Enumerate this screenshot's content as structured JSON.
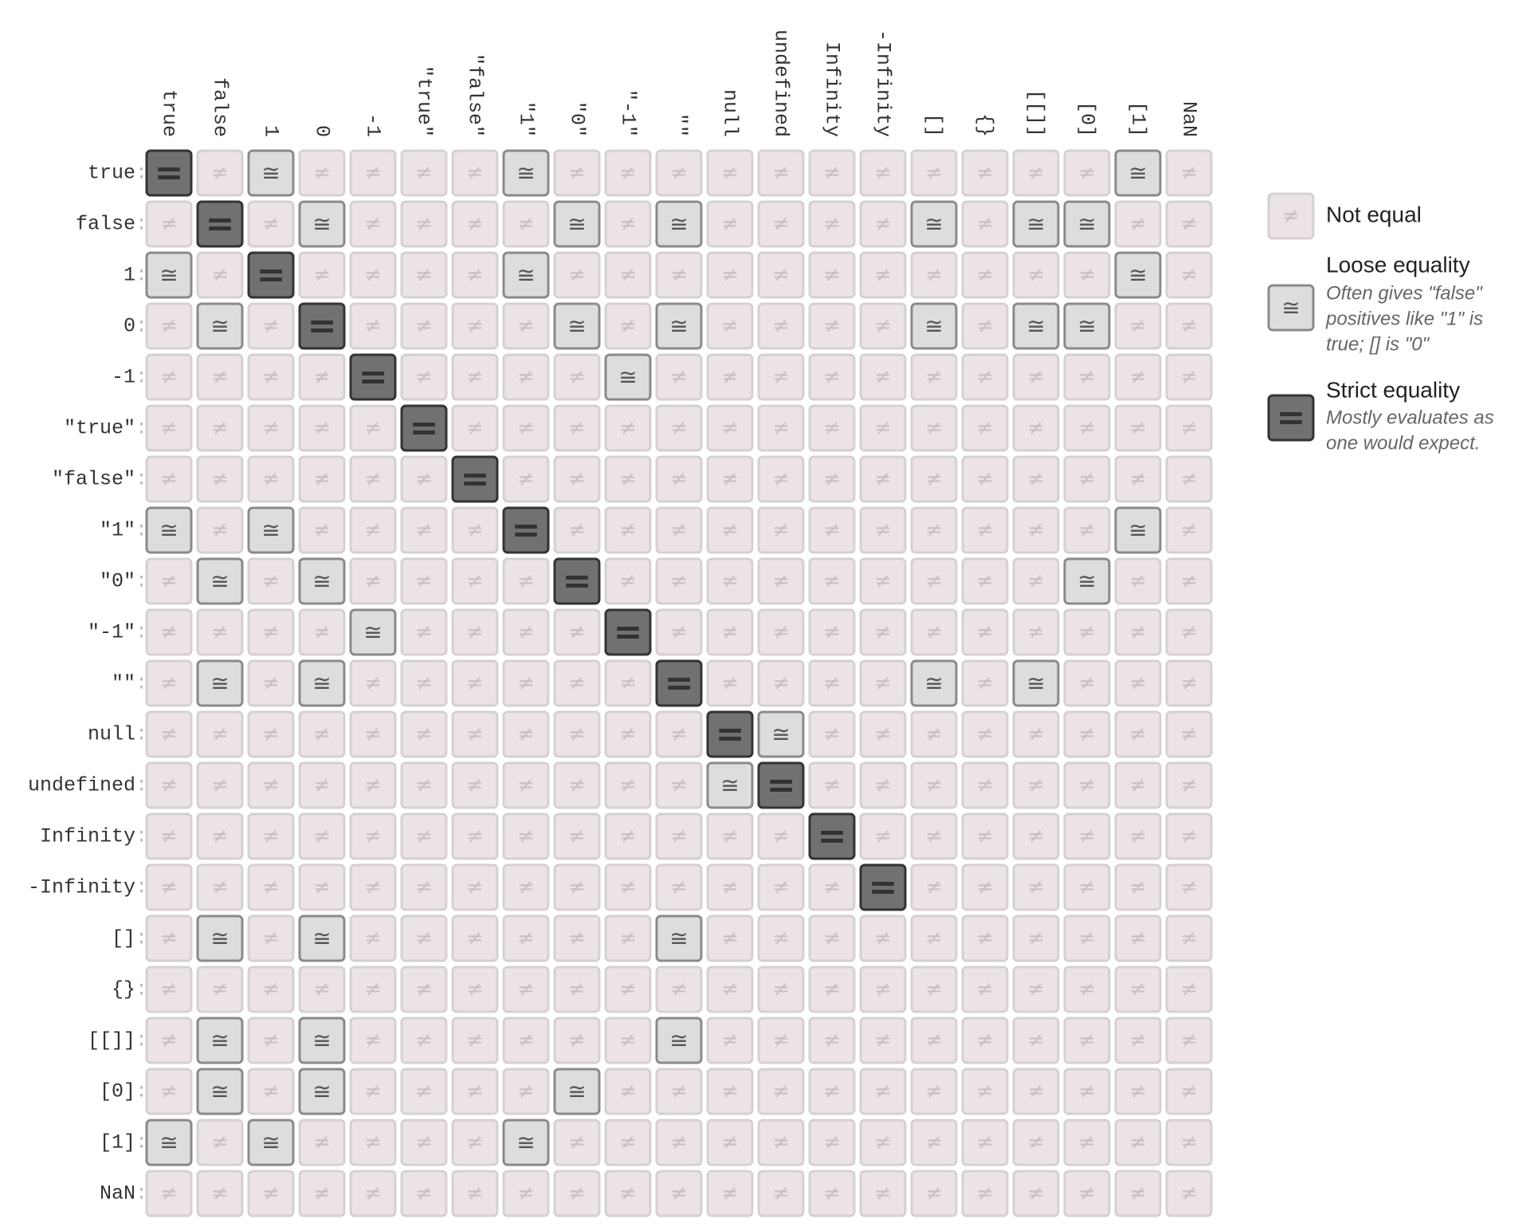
{
  "labels": [
    "true",
    "false",
    "1",
    "0",
    "-1",
    "\"true\"",
    "\"false\"",
    "\"1\"",
    "\"0\"",
    "\"-1\"",
    "\"\"",
    "null",
    "undefined",
    "Infinity",
    "-Infinity",
    "[]",
    "{}",
    "[[]]",
    "[0]",
    "[1]",
    "NaN"
  ],
  "separator": ":",
  "matrix": [
    [
      "=",
      "≠",
      "≅",
      "≠",
      "≠",
      "≠",
      "≠",
      "≅",
      "≠",
      "≠",
      "≠",
      "≠",
      "≠",
      "≠",
      "≠",
      "≠",
      "≠",
      "≠",
      "≠",
      "≅",
      "≠"
    ],
    [
      "≠",
      "=",
      "≠",
      "≅",
      "≠",
      "≠",
      "≠",
      "≠",
      "≅",
      "≠",
      "≅",
      "≠",
      "≠",
      "≠",
      "≠",
      "≅",
      "≠",
      "≅",
      "≅",
      "≠",
      "≠"
    ],
    [
      "≅",
      "≠",
      "=",
      "≠",
      "≠",
      "≠",
      "≠",
      "≅",
      "≠",
      "≠",
      "≠",
      "≠",
      "≠",
      "≠",
      "≠",
      "≠",
      "≠",
      "≠",
      "≠",
      "≅",
      "≠"
    ],
    [
      "≠",
      "≅",
      "≠",
      "=",
      "≠",
      "≠",
      "≠",
      "≠",
      "≅",
      "≠",
      "≅",
      "≠",
      "≠",
      "≠",
      "≠",
      "≅",
      "≠",
      "≅",
      "≅",
      "≠",
      "≠"
    ],
    [
      "≠",
      "≠",
      "≠",
      "≠",
      "=",
      "≠",
      "≠",
      "≠",
      "≠",
      "≅",
      "≠",
      "≠",
      "≠",
      "≠",
      "≠",
      "≠",
      "≠",
      "≠",
      "≠",
      "≠",
      "≠"
    ],
    [
      "≠",
      "≠",
      "≠",
      "≠",
      "≠",
      "=",
      "≠",
      "≠",
      "≠",
      "≠",
      "≠",
      "≠",
      "≠",
      "≠",
      "≠",
      "≠",
      "≠",
      "≠",
      "≠",
      "≠",
      "≠"
    ],
    [
      "≠",
      "≠",
      "≠",
      "≠",
      "≠",
      "≠",
      "=",
      "≠",
      "≠",
      "≠",
      "≠",
      "≠",
      "≠",
      "≠",
      "≠",
      "≠",
      "≠",
      "≠",
      "≠",
      "≠",
      "≠"
    ],
    [
      "≅",
      "≠",
      "≅",
      "≠",
      "≠",
      "≠",
      "≠",
      "=",
      "≠",
      "≠",
      "≠",
      "≠",
      "≠",
      "≠",
      "≠",
      "≠",
      "≠",
      "≠",
      "≠",
      "≅",
      "≠"
    ],
    [
      "≠",
      "≅",
      "≠",
      "≅",
      "≠",
      "≠",
      "≠",
      "≠",
      "=",
      "≠",
      "≠",
      "≠",
      "≠",
      "≠",
      "≠",
      "≠",
      "≠",
      "≠",
      "≅",
      "≠",
      "≠"
    ],
    [
      "≠",
      "≠",
      "≠",
      "≠",
      "≅",
      "≠",
      "≠",
      "≠",
      "≠",
      "=",
      "≠",
      "≠",
      "≠",
      "≠",
      "≠",
      "≠",
      "≠",
      "≠",
      "≠",
      "≠",
      "≠"
    ],
    [
      "≠",
      "≅",
      "≠",
      "≅",
      "≠",
      "≠",
      "≠",
      "≠",
      "≠",
      "≠",
      "=",
      "≠",
      "≠",
      "≠",
      "≠",
      "≅",
      "≠",
      "≅",
      "≠",
      "≠",
      "≠"
    ],
    [
      "≠",
      "≠",
      "≠",
      "≠",
      "≠",
      "≠",
      "≠",
      "≠",
      "≠",
      "≠",
      "≠",
      "=",
      "≅",
      "≠",
      "≠",
      "≠",
      "≠",
      "≠",
      "≠",
      "≠",
      "≠"
    ],
    [
      "≠",
      "≠",
      "≠",
      "≠",
      "≠",
      "≠",
      "≠",
      "≠",
      "≠",
      "≠",
      "≠",
      "≅",
      "=",
      "≠",
      "≠",
      "≠",
      "≠",
      "≠",
      "≠",
      "≠",
      "≠"
    ],
    [
      "≠",
      "≠",
      "≠",
      "≠",
      "≠",
      "≠",
      "≠",
      "≠",
      "≠",
      "≠",
      "≠",
      "≠",
      "≠",
      "=",
      "≠",
      "≠",
      "≠",
      "≠",
      "≠",
      "≠",
      "≠"
    ],
    [
      "≠",
      "≠",
      "≠",
      "≠",
      "≠",
      "≠",
      "≠",
      "≠",
      "≠",
      "≠",
      "≠",
      "≠",
      "≠",
      "≠",
      "=",
      "≠",
      "≠",
      "≠",
      "≠",
      "≠",
      "≠"
    ],
    [
      "≠",
      "≅",
      "≠",
      "≅",
      "≠",
      "≠",
      "≠",
      "≠",
      "≠",
      "≠",
      "≅",
      "≠",
      "≠",
      "≠",
      "≠",
      "≠",
      "≠",
      "≠",
      "≠",
      "≠",
      "≠"
    ],
    [
      "≠",
      "≠",
      "≠",
      "≠",
      "≠",
      "≠",
      "≠",
      "≠",
      "≠",
      "≠",
      "≠",
      "≠",
      "≠",
      "≠",
      "≠",
      "≠",
      "≠",
      "≠",
      "≠",
      "≠",
      "≠"
    ],
    [
      "≠",
      "≅",
      "≠",
      "≅",
      "≠",
      "≠",
      "≠",
      "≠",
      "≠",
      "≠",
      "≅",
      "≠",
      "≠",
      "≠",
      "≠",
      "≠",
      "≠",
      "≠",
      "≠",
      "≠",
      "≠"
    ],
    [
      "≠",
      "≅",
      "≠",
      "≅",
      "≠",
      "≠",
      "≠",
      "≠",
      "≅",
      "≠",
      "≠",
      "≠",
      "≠",
      "≠",
      "≠",
      "≠",
      "≠",
      "≠",
      "≠",
      "≠",
      "≠"
    ],
    [
      "≅",
      "≠",
      "≅",
      "≠",
      "≠",
      "≠",
      "≠",
      "≅",
      "≠",
      "≠",
      "≠",
      "≠",
      "≠",
      "≠",
      "≠",
      "≠",
      "≠",
      "≠",
      "≠",
      "≠",
      "≠"
    ],
    [
      "≠",
      "≠",
      "≠",
      "≠",
      "≠",
      "≠",
      "≠",
      "≠",
      "≠",
      "≠",
      "≠",
      "≠",
      "≠",
      "≠",
      "≠",
      "≠",
      "≠",
      "≠",
      "≠",
      "≠",
      "≠"
    ]
  ],
  "legend": [
    {
      "symbol": "≠",
      "title": "Not equal"
    },
    {
      "symbol": "≅",
      "title": "Loose equality",
      "description": [
        "Often gives \"false\"",
        "positives like \"1\" is",
        "true; [] is \"0\""
      ]
    },
    {
      "symbol": "=",
      "title": "Strict equality",
      "description": [
        "Mostly evaluates as",
        "one would expect."
      ]
    }
  ]
}
